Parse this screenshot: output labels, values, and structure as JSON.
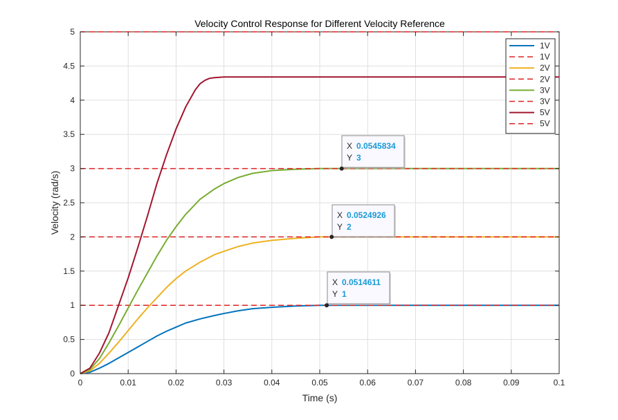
{
  "chart_data": {
    "type": "line",
    "title": "Velocity Control Response for Different Velocity Reference",
    "xlabel": "Time (s)",
    "ylabel": "Velocity (rad/s)",
    "xlim": [
      0,
      0.1
    ],
    "ylim": [
      0,
      5
    ],
    "xticks": [
      0,
      0.01,
      0.02,
      0.03,
      0.04,
      0.05,
      0.06,
      0.07,
      0.08,
      0.09,
      0.1
    ],
    "xtick_labels": [
      "0",
      "0.01",
      "0.02",
      "0.03",
      "0.04",
      "0.05",
      "0.06",
      "0.07",
      "0.08",
      "0.09",
      "0.1"
    ],
    "yticks": [
      0,
      0.5,
      1,
      1.5,
      2,
      2.5,
      3,
      3.5,
      4,
      4.5,
      5
    ],
    "ytick_labels": [
      "0",
      "0.5",
      "1",
      "1.5",
      "2",
      "2.5",
      "3",
      "3.5",
      "4",
      "4.5",
      "5"
    ],
    "grid": true,
    "legend_position": "top-right",
    "legend": [
      "1V",
      "1V",
      "2V",
      "2V",
      "3V",
      "3V",
      "5V",
      "5V"
    ],
    "series": [
      {
        "name": "1V",
        "color": "#0072BD",
        "style": "solid",
        "x": [
          0,
          0.002,
          0.004,
          0.006,
          0.008,
          0.01,
          0.012,
          0.014,
          0.016,
          0.018,
          0.02,
          0.022,
          0.025,
          0.028,
          0.03,
          0.033,
          0.036,
          0.04,
          0.045,
          0.05,
          0.055,
          0.06,
          0.07,
          0.08,
          0.09,
          0.1
        ],
        "y": [
          0,
          0.02,
          0.08,
          0.15,
          0.23,
          0.31,
          0.39,
          0.47,
          0.55,
          0.62,
          0.68,
          0.74,
          0.8,
          0.85,
          0.88,
          0.92,
          0.95,
          0.97,
          0.99,
          1,
          1,
          1,
          1,
          1,
          1,
          1
        ]
      },
      {
        "name": "1V",
        "color": "#E02020",
        "style": "dashed",
        "x": [
          0,
          0.1
        ],
        "y": [
          1,
          1
        ]
      },
      {
        "name": "2V",
        "color": "#EDB120",
        "style": "solid",
        "x": [
          0,
          0.002,
          0.004,
          0.006,
          0.008,
          0.01,
          0.012,
          0.014,
          0.016,
          0.018,
          0.02,
          0.022,
          0.025,
          0.028,
          0.03,
          0.033,
          0.036,
          0.04,
          0.045,
          0.05,
          0.055,
          0.06,
          0.07,
          0.08,
          0.09,
          0.1
        ],
        "y": [
          0,
          0.04,
          0.15,
          0.3,
          0.46,
          0.63,
          0.8,
          0.96,
          1.11,
          1.26,
          1.39,
          1.5,
          1.63,
          1.74,
          1.79,
          1.86,
          1.91,
          1.95,
          1.98,
          2,
          2,
          2,
          2,
          2,
          2,
          2
        ]
      },
      {
        "name": "2V",
        "color": "#E02020",
        "style": "dashed",
        "x": [
          0,
          0.1
        ],
        "y": [
          2,
          2
        ]
      },
      {
        "name": "3V",
        "color": "#77AC30",
        "style": "solid",
        "x": [
          0,
          0.002,
          0.004,
          0.006,
          0.008,
          0.01,
          0.012,
          0.014,
          0.016,
          0.018,
          0.02,
          0.022,
          0.025,
          0.028,
          0.03,
          0.033,
          0.036,
          0.04,
          0.045,
          0.05,
          0.055,
          0.06,
          0.07,
          0.08,
          0.09,
          0.1
        ],
        "y": [
          0,
          0.06,
          0.22,
          0.45,
          0.7,
          0.96,
          1.22,
          1.47,
          1.72,
          1.95,
          2.15,
          2.33,
          2.55,
          2.7,
          2.78,
          2.87,
          2.93,
          2.97,
          2.99,
          3,
          3,
          3,
          3,
          3,
          3,
          3
        ]
      },
      {
        "name": "3V",
        "color": "#E02020",
        "style": "dashed",
        "x": [
          0,
          0.1
        ],
        "y": [
          3,
          3
        ]
      },
      {
        "name": "5V",
        "color": "#A2142F",
        "style": "solid",
        "x": [
          0,
          0.002,
          0.004,
          0.006,
          0.008,
          0.01,
          0.012,
          0.014,
          0.016,
          0.018,
          0.02,
          0.022,
          0.024,
          0.025,
          0.026,
          0.027,
          0.028,
          0.03,
          0.035,
          0.04,
          0.05,
          0.06,
          0.07,
          0.08,
          0.09,
          0.1
        ],
        "y": [
          0,
          0.08,
          0.3,
          0.6,
          1.0,
          1.4,
          1.84,
          2.3,
          2.78,
          3.2,
          3.58,
          3.9,
          4.15,
          4.24,
          4.29,
          4.32,
          4.33,
          4.34,
          4.34,
          4.34,
          4.34,
          4.34,
          4.34,
          4.34,
          4.34,
          4.34
        ]
      },
      {
        "name": "5V",
        "color": "#E02020",
        "style": "dashed",
        "x": [
          0,
          0.1
        ],
        "y": [
          5,
          5
        ]
      }
    ],
    "datatips": [
      {
        "x_label": "X",
        "x_value": "0.0545834",
        "y_label": "Y",
        "y_value": "3",
        "x": 0.0545834,
        "y": 3
      },
      {
        "x_label": "X",
        "x_value": "0.0524926",
        "y_label": "Y",
        "y_value": "2",
        "x": 0.0524926,
        "y": 2
      },
      {
        "x_label": "X",
        "x_value": "0.0514611",
        "y_label": "Y",
        "y_value": "1",
        "x": 0.0514611,
        "y": 1
      }
    ]
  }
}
